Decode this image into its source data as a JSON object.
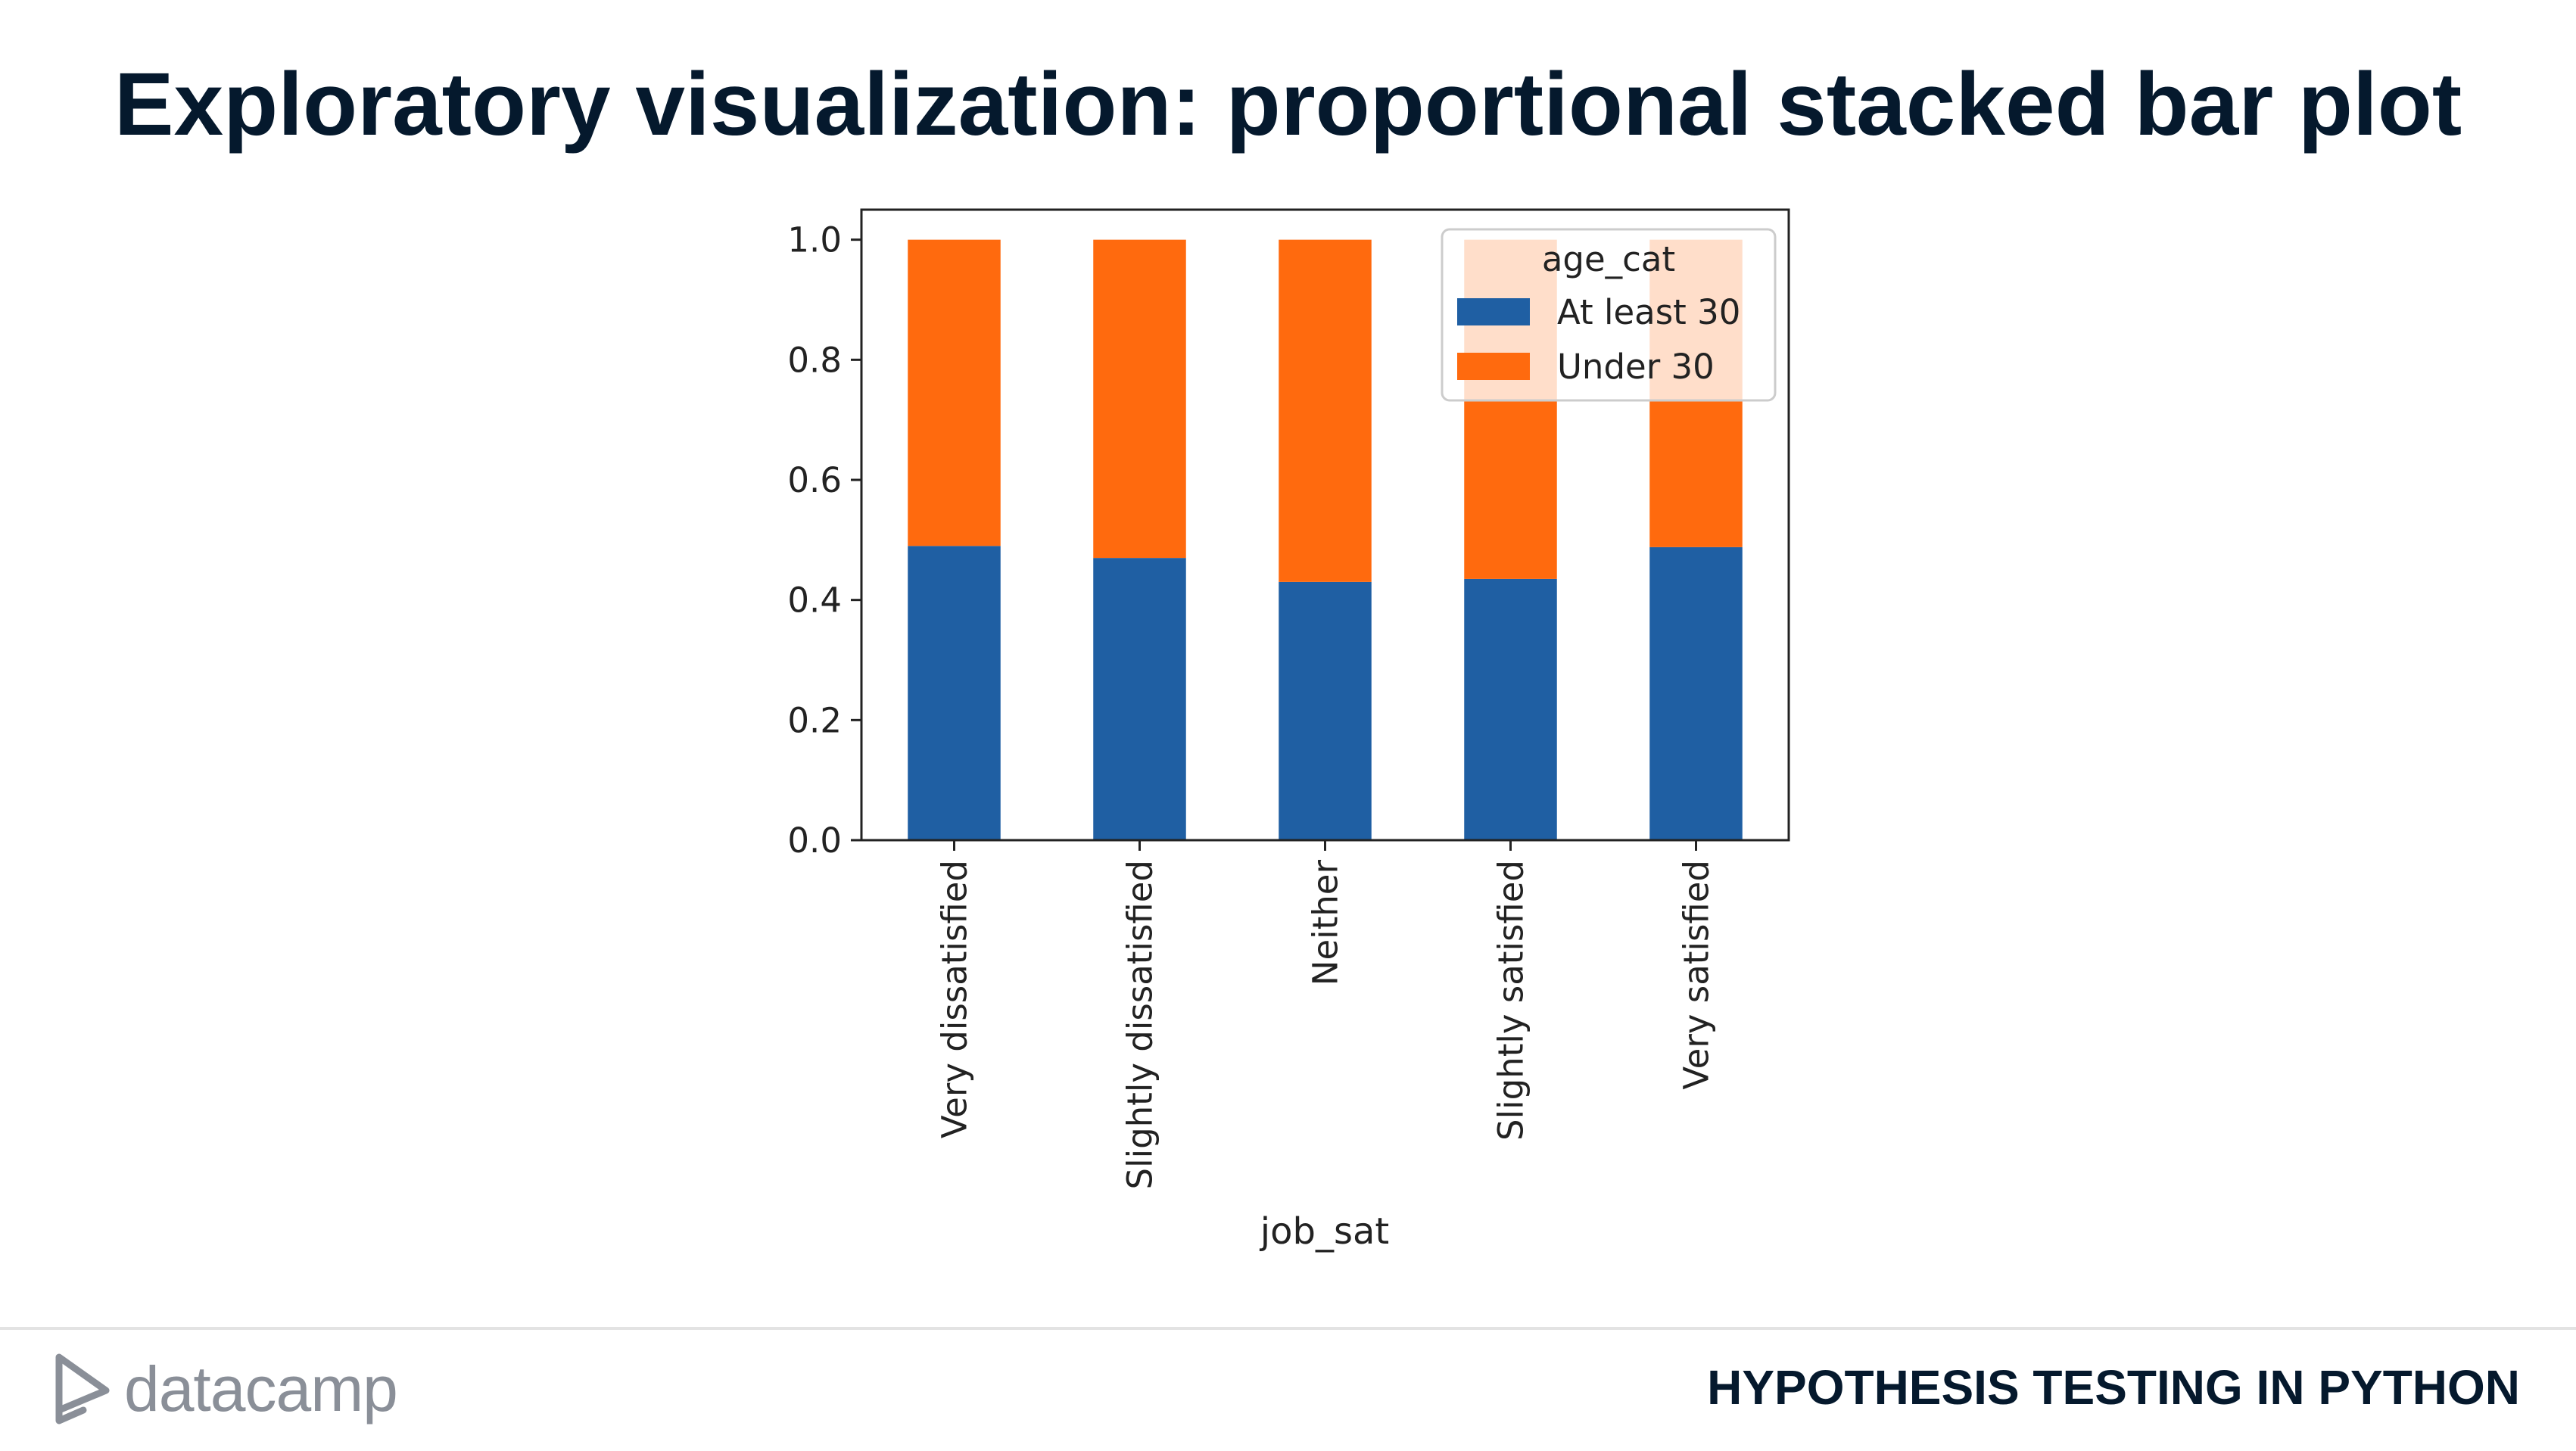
{
  "slide": {
    "title": "Exploratory visualization: proportional stacked bar plot",
    "course": "HYPOTHESIS TESTING IN PYTHON",
    "brand": "datacamp"
  },
  "colors": {
    "title": "#05192d",
    "at_least_30": "#1f5fa3",
    "under_30": "#ff6a0e",
    "brand_gray": "#8a8f98"
  },
  "chart_data": {
    "type": "bar",
    "stacked": true,
    "categories": [
      "Very dissatisfied",
      "Slightly dissatisfied",
      "Neither",
      "Slightly satisfied",
      "Very satisfied"
    ],
    "series": [
      {
        "name": "At least 30",
        "color": "#1f5fa3",
        "values": [
          0.49,
          0.47,
          0.43,
          0.435,
          0.488
        ]
      },
      {
        "name": "Under 30",
        "color": "#ff6a0e",
        "values": [
          0.51,
          0.53,
          0.57,
          0.565,
          0.512
        ]
      }
    ],
    "xlabel": "job_sat",
    "ylabel": "",
    "ylim": [
      0,
      1.05
    ],
    "yticks": [
      "0.0",
      "0.2",
      "0.4",
      "0.6",
      "0.8",
      "1.0"
    ],
    "legend_title": "age_cat",
    "legend_position": "top-right",
    "grid": false
  }
}
